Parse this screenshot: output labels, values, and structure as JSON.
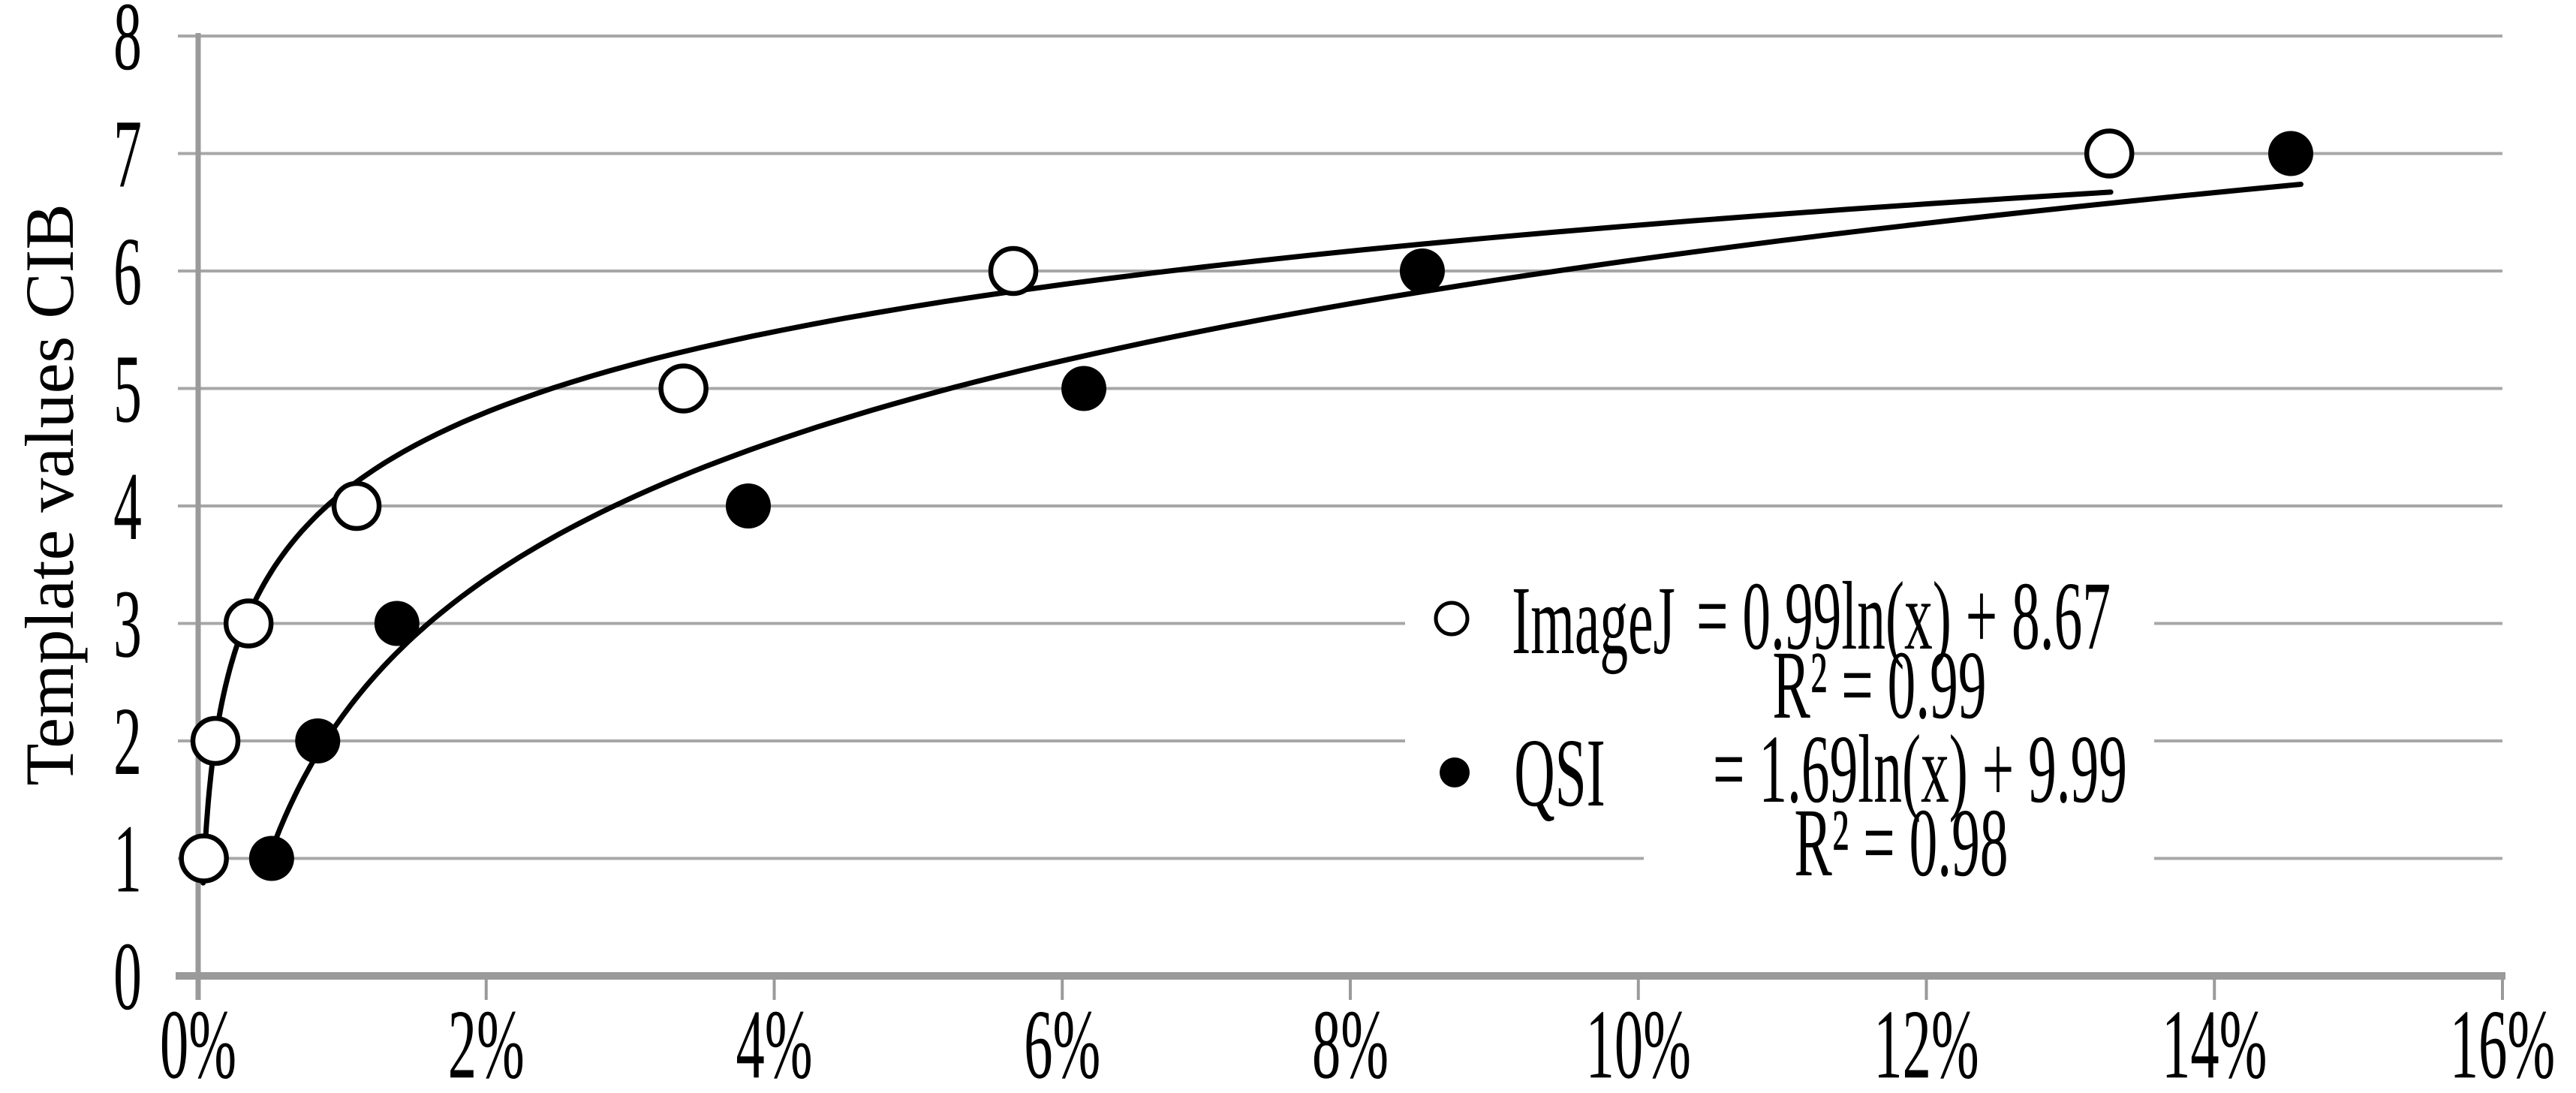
{
  "chart_data": {
    "type": "scatter",
    "title": "",
    "xlabel": "",
    "ylabel": "Template values CIB",
    "x_tick_labels": [
      "0%",
      "2%",
      "4%",
      "6%",
      "8%",
      "10%",
      "12%",
      "14%",
      "16%"
    ],
    "x_tick_values_pct": [
      0,
      2,
      4,
      6,
      8,
      10,
      12,
      14,
      16
    ],
    "y_tick_labels": [
      "0",
      "1",
      "2",
      "3",
      "4",
      "5",
      "6",
      "7",
      "8"
    ],
    "y_tick_values": [
      0,
      1,
      2,
      3,
      4,
      5,
      6,
      7,
      8
    ],
    "xlim_pct": [
      0,
      16
    ],
    "ylim": [
      0,
      8
    ],
    "grid": true,
    "legend_position": "inside-right",
    "series": [
      {
        "name": "ImageJ",
        "marker": "open-circle",
        "x_pct": [
          0.04,
          0.12,
          0.35,
          1.1,
          3.37,
          5.66,
          13.27
        ],
        "y": [
          1,
          2,
          3,
          4,
          5,
          6,
          7
        ],
        "trendline": {
          "type": "logarithmic",
          "a": 0.99,
          "b": 8.67,
          "equation": "= 0.99ln(x) + 8.67",
          "r2_label": "R² = 0.99",
          "domain_pct": [
            0.035,
            13.28
          ]
        }
      },
      {
        "name": "QSI",
        "marker": "filled-circle",
        "x_pct": [
          0.51,
          0.83,
          1.38,
          3.82,
          6.15,
          8.5,
          14.53
        ],
        "y": [
          1,
          2,
          3,
          4,
          5,
          6,
          7
        ],
        "trendline": {
          "type": "logarithmic",
          "a": 1.69,
          "b": 9.99,
          "equation": "= 1.69ln(x) + 9.99",
          "r2_label": "R² = 0.98",
          "domain_pct": [
            0.48,
            14.6
          ]
        }
      }
    ],
    "colors": {
      "background": "#ffffff",
      "gridline": "#a7a7a7",
      "axis": "#9a9a9a",
      "marker": "#000000",
      "trendline": "#000000",
      "text": "#000000"
    }
  }
}
